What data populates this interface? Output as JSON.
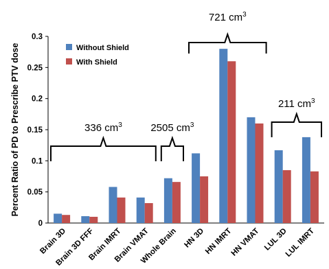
{
  "chart_data": {
    "type": "bar",
    "categories": [
      "Brain 3D",
      "Brain 3D FFF",
      "Brain IMRT",
      "Brain VMAT",
      "Whole Brain",
      "HN 3D",
      "HN IMRT",
      "HN VMAT",
      "LUL 3D",
      "LUL IMRT"
    ],
    "series": [
      {
        "name": "Without Shield",
        "color": "#4F81BD",
        "values": [
          0.015,
          0.011,
          0.058,
          0.041,
          0.072,
          0.112,
          0.28,
          0.17,
          0.117,
          0.138
        ]
      },
      {
        "name": "With Shield",
        "color": "#C0504D",
        "values": [
          0.013,
          0.01,
          0.041,
          0.032,
          0.066,
          0.075,
          0.26,
          0.16,
          0.085,
          0.083
        ]
      }
    ],
    "ylabel": "Percent Ratio of PD to Prescribe PTV dose",
    "xlabel": "",
    "ylim": [
      0,
      0.3
    ],
    "yticks": [
      "0",
      "0.05",
      "0.1",
      "0.15",
      "0.2",
      "0.25",
      "0.3"
    ],
    "legend_position": "top-left",
    "grid": false,
    "annotations": [
      {
        "label": "336 cm",
        "sup": "3",
        "from": 0,
        "to": 3,
        "orient": "down"
      },
      {
        "label": "2505 cm",
        "sup": "3",
        "from": 4,
        "to": 4,
        "orient": "down"
      },
      {
        "label": "721 cm",
        "sup": "3",
        "from": 5,
        "to": 7,
        "orient": "up"
      },
      {
        "label": "211 cm",
        "sup": "3",
        "from": 8,
        "to": 9,
        "orient": "down"
      }
    ]
  }
}
